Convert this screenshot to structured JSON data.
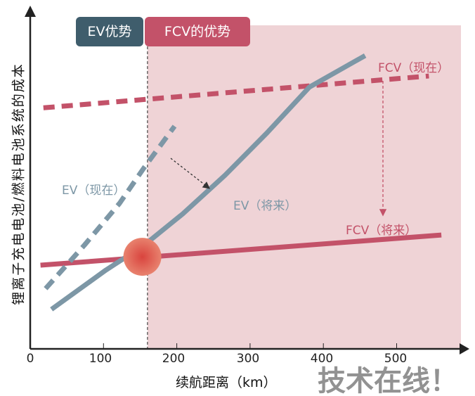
{
  "chart_data": {
    "type": "line",
    "xlabel": "续航距离（km）",
    "ylabel": "锂离子充电电池/燃料电池系统的成本",
    "xlim": [
      0,
      590
    ],
    "ylim": [
      0,
      100
    ],
    "x_ticks": [
      0,
      100,
      200,
      300,
      400,
      500
    ],
    "grid": false,
    "regions": [
      {
        "label": "EV优势",
        "color": "#3f5d6c"
      },
      {
        "label": "FCV的优势",
        "color": "#c35269",
        "from_x": 160,
        "fill": "#efd3d6"
      }
    ],
    "divider_x": 160,
    "series": [
      {
        "name": "FCV（现在）",
        "style": "dashed",
        "color": "#c35269",
        "x": [
          18,
          544
        ],
        "y": [
          72,
          81.5
        ]
      },
      {
        "name": "FCV（将来）",
        "style": "solid",
        "color": "#c35269",
        "x": [
          14,
          561
        ],
        "y": [
          25,
          34
        ]
      },
      {
        "name": "EV（现在）",
        "style": "dashed",
        "color": "#7d97a6",
        "x": [
          21,
          74,
          122,
          155,
          197
        ],
        "y": [
          18,
          31,
          43.5,
          54,
          66.5
        ]
      },
      {
        "name": "EV（将来）",
        "style": "solid",
        "color": "#7d97a6",
        "x": [
          29,
          103,
          155,
          208,
          266,
          323,
          381,
          457
        ],
        "y": [
          11.8,
          23.5,
          30.9,
          40.3,
          51.9,
          64.5,
          78.2,
          87.6
        ]
      }
    ],
    "crossover": {
      "x": 153,
      "y": 27.5,
      "color": "#d9443e"
    },
    "annotations": [
      {
        "text": "EV（现在）"
      },
      {
        "text": "EV（将来）"
      },
      {
        "text": "FCV（现在）"
      },
      {
        "text": "FCV（将来）"
      }
    ]
  },
  "watermark": "技术在线！"
}
